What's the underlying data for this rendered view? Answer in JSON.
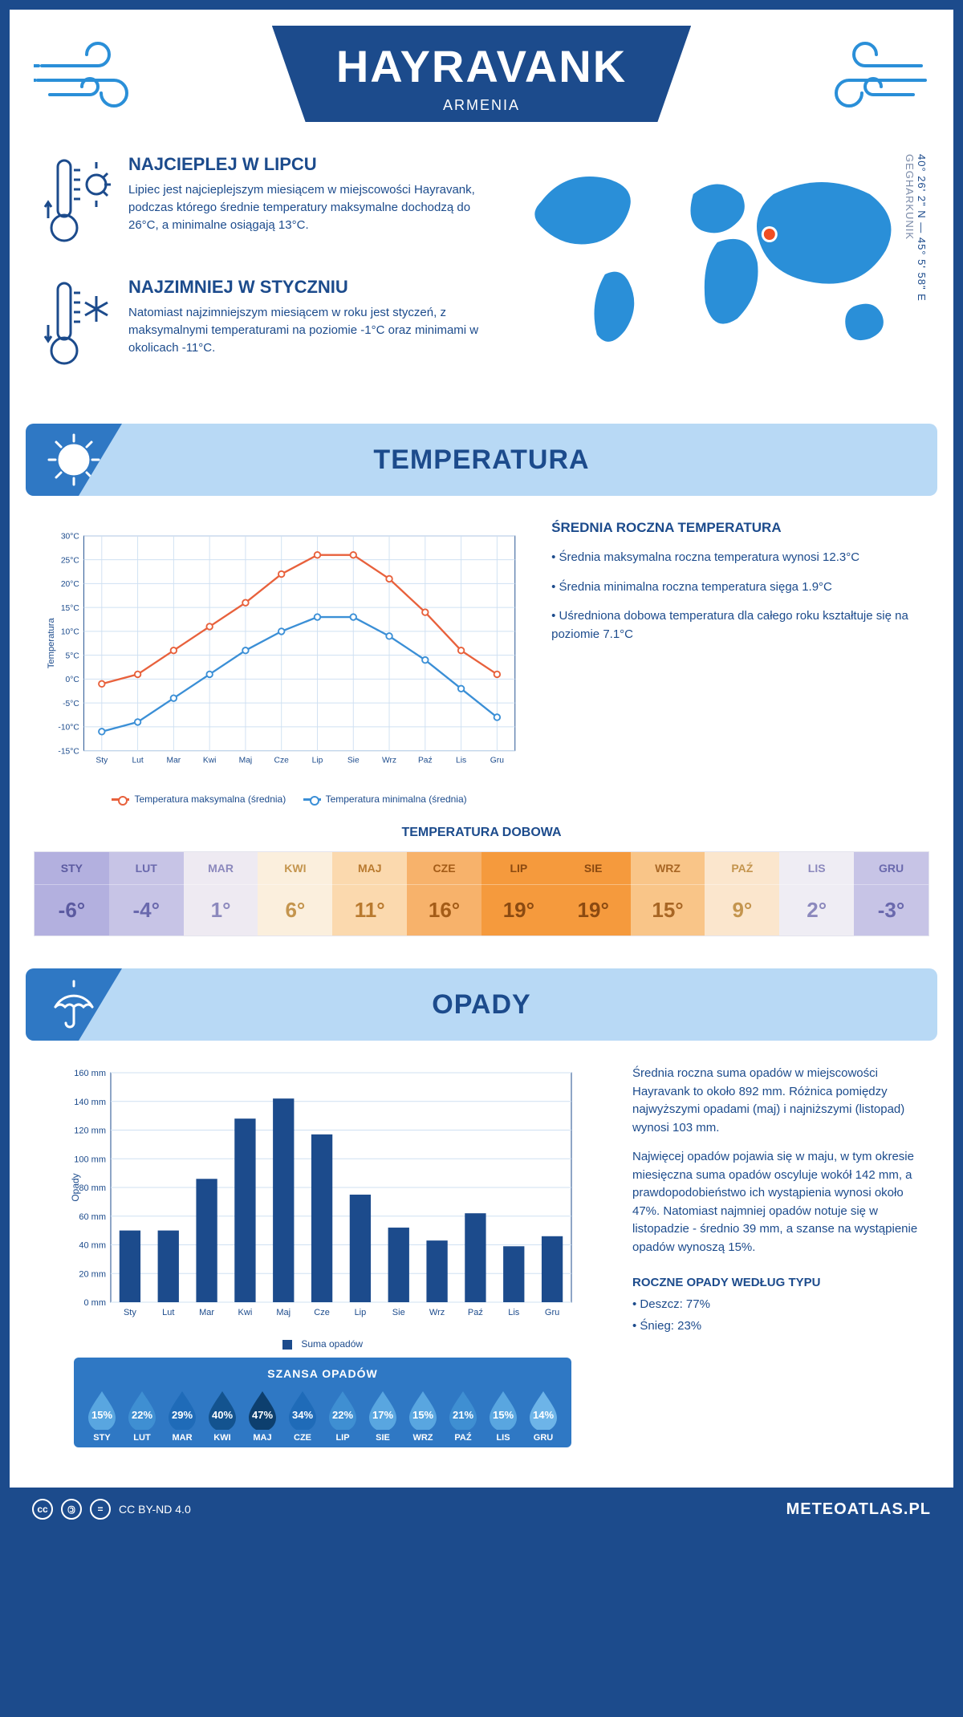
{
  "header": {
    "city": "HAYRAVANK",
    "country": "ARMENIA"
  },
  "coords": {
    "lat": "40° 26' 2\" N",
    "lon": "45° 5' 58\" E",
    "region": "GEGHARKUNIK"
  },
  "facts": {
    "hot": {
      "title": "NAJCIEPLEJ W LIPCU",
      "text": "Lipiec jest najcieplejszym miesiącem w miejscowości Hayravank, podczas którego średnie temperatury maksymalne dochodzą do 26°C, a minimalne osiągają 13°C."
    },
    "cold": {
      "title": "NAJZIMNIEJ W STYCZNIU",
      "text": "Natomiast najzimniejszym miesiącem w roku jest styczeń, z maksymalnymi temperaturami na poziomie -1°C oraz minimami w okolicach -11°C."
    }
  },
  "sections": {
    "temperature": "TEMPERATURA",
    "precip": "OPADY"
  },
  "months_short": [
    "Sty",
    "Lut",
    "Mar",
    "Kwi",
    "Maj",
    "Cze",
    "Lip",
    "Sie",
    "Wrz",
    "Paź",
    "Lis",
    "Gru"
  ],
  "months_upper": [
    "STY",
    "LUT",
    "MAR",
    "KWI",
    "MAJ",
    "CZE",
    "LIP",
    "SIE",
    "WRZ",
    "PAŹ",
    "LIS",
    "GRU"
  ],
  "temp_chart": {
    "ylabel": "Temperatura",
    "ymin": -15,
    "ymax": 30,
    "ystep": 5,
    "series": {
      "max": {
        "label": "Temperatura maksymalna (średnia)",
        "color": "#e8613c",
        "values": [
          -1,
          1,
          6,
          11,
          16,
          22,
          26,
          26,
          21,
          14,
          6,
          1
        ]
      },
      "min": {
        "label": "Temperatura minimalna (średnia)",
        "color": "#3b8fd6",
        "values": [
          -11,
          -9,
          -4,
          1,
          6,
          10,
          13,
          13,
          9,
          4,
          -2,
          -8
        ]
      }
    }
  },
  "temp_side": {
    "title": "ŚREDNIA ROCZNA TEMPERATURA",
    "bullets": [
      "• Średnia maksymalna roczna temperatura wynosi 12.3°C",
      "• Średnia minimalna roczna temperatura sięga 1.9°C",
      "• Uśredniona dobowa temperatura dla całego roku kształtuje się na poziomie 7.1°C"
    ]
  },
  "daily": {
    "title": "TEMPERATURA DOBOWA",
    "values": [
      "-6°",
      "-4°",
      "1°",
      "6°",
      "11°",
      "16°",
      "19°",
      "19°",
      "15°",
      "9°",
      "2°",
      "-3°"
    ],
    "bg": [
      "#b3b0df",
      "#c7c4e6",
      "#eeeaf2",
      "#fbefdd",
      "#fbd9ae",
      "#f7b26b",
      "#f59a3d",
      "#f59a3d",
      "#f9c588",
      "#fbe6cd",
      "#efedf4",
      "#c7c4e6"
    ],
    "text": [
      "#5b5aa0",
      "#6a69ad",
      "#8c89bd",
      "#c4954e",
      "#b97a2f",
      "#a45c17",
      "#8b4a11",
      "#8b4a11",
      "#a86624",
      "#c4954e",
      "#8c89bd",
      "#6a69ad"
    ]
  },
  "precip_chart": {
    "ylabel": "Opady",
    "ymax": 160,
    "ystep": 20,
    "legend": "Suma opadów",
    "color": "#1c4b8c",
    "values": [
      50,
      50,
      86,
      128,
      142,
      117,
      75,
      52,
      43,
      62,
      39,
      46
    ]
  },
  "precip_text": {
    "p1": "Średnia roczna suma opadów w miejscowości Hayravank to około 892 mm. Różnica pomiędzy najwyższymi opadami (maj) i najniższymi (listopad) wynosi 103 mm.",
    "p2": "Najwięcej opadów pojawia się w maju, w tym okresie miesięczna suma opadów oscyluje wokół 142 mm, a prawdopodobieństwo ich wystąpienia wynosi około 47%. Natomiast najmniej opadów notuje się w listopadzie - średnio 39 mm, a szanse na wystąpienie opadów wynoszą 15%."
  },
  "chance": {
    "title": "SZANSA OPADÓW",
    "values": [
      15,
      22,
      29,
      40,
      47,
      34,
      22,
      17,
      15,
      21,
      15,
      14
    ],
    "colors": [
      "#59a6e0",
      "#3f8fd2",
      "#1f6bb8",
      "#13538f",
      "#0d3f6e",
      "#1f6bb8",
      "#3f8fd2",
      "#59a6e0",
      "#59a6e0",
      "#3f8fd2",
      "#59a6e0",
      "#6db4e8"
    ]
  },
  "precip_types": {
    "title": "ROCZNE OPADY WEDŁUG TYPU",
    "rain": "• Deszcz: 77%",
    "snow": "• Śnieg: 23%"
  },
  "footer": {
    "license": "CC BY-ND 4.0",
    "site": "METEOATLAS.PL"
  },
  "colors": {
    "primary": "#1c4b8c",
    "band": "#b8d9f5",
    "accent": "#2f78c4",
    "grid": "#cfe0f2",
    "map": "#2a8fd8",
    "marker": "#f04e23"
  }
}
